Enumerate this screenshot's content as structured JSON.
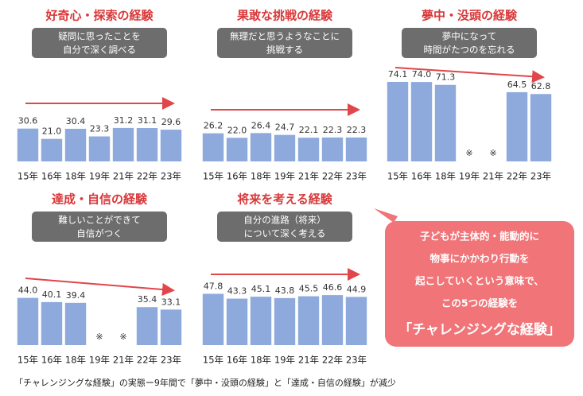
{
  "chart_data": [
    {
      "type": "bar",
      "title": "好奇心・探索の経験",
      "subtitle": [
        "疑問に思ったことを",
        "自分で深く調べる"
      ],
      "categories": [
        "15年",
        "16年",
        "18年",
        "19年",
        "21年",
        "22年",
        "23年"
      ],
      "values": [
        30.6,
        21.0,
        30.4,
        23.3,
        31.2,
        31.1,
        29.6
      ],
      "value_labels": [
        "30.6",
        "21.0",
        "30.4",
        "23.3",
        "31.2",
        "31.1",
        "29.6"
      ],
      "color": "#8eaadd"
    },
    {
      "type": "bar",
      "title": "果敢な挑戦の経験",
      "subtitle": [
        "無理だと思うようなことに",
        "挑戦する"
      ],
      "categories": [
        "15年",
        "16年",
        "18年",
        "19年",
        "21年",
        "22年",
        "23年"
      ],
      "values": [
        26.2,
        22.0,
        26.4,
        24.7,
        22.1,
        22.3,
        22.3
      ],
      "value_labels": [
        "26.2",
        "22.0",
        "26.4",
        "24.7",
        "22.1",
        "22.3",
        "22.3"
      ],
      "color": "#8eaadd"
    },
    {
      "type": "bar",
      "title": "夢中・没頭の経験",
      "subtitle": [
        "夢中になって",
        "時間がたつのを忘れる"
      ],
      "categories": [
        "15年",
        "16年",
        "18年",
        "19年",
        "21年",
        "22年",
        "23年"
      ],
      "values": [
        74.1,
        74.0,
        71.3,
        null,
        null,
        64.5,
        62.8
      ],
      "value_labels": [
        "74.1",
        "74.0",
        "71.3",
        "※",
        "※",
        "64.5",
        "62.8"
      ],
      "color": "#8eaadd"
    },
    {
      "type": "bar",
      "title": "達成・自信の経験",
      "subtitle": [
        "難しいことができて",
        "自信がつく"
      ],
      "categories": [
        "15年",
        "16年",
        "18年",
        "19年",
        "21年",
        "22年",
        "23年"
      ],
      "values": [
        44.0,
        40.1,
        39.4,
        null,
        null,
        35.4,
        33.1
      ],
      "value_labels": [
        "44.0",
        "40.1",
        "39.4",
        "※",
        "※",
        "35.4",
        "33.1"
      ],
      "color": "#8eaadd"
    },
    {
      "type": "bar",
      "title": "将来を考える経験",
      "subtitle": [
        "自分の進路（将来）",
        "について深く考える"
      ],
      "categories": [
        "15年",
        "16年",
        "18年",
        "19年",
        "21年",
        "22年",
        "23年"
      ],
      "values": [
        47.8,
        43.3,
        45.1,
        43.8,
        45.5,
        46.6,
        44.9
      ],
      "value_labels": [
        "47.8",
        "43.3",
        "45.1",
        "43.8",
        "45.5",
        "46.6",
        "44.9"
      ],
      "color": "#8eaadd"
    }
  ],
  "callout": [
    "子どもが主体的・能動的に",
    "物事にかかわり行動を",
    "起こしていくという意味で、",
    "この5つの経験を",
    "「チャレンジングな経験」"
  ],
  "footnote": "「チャレンジングな経験」の実態ー9年間で「夢中・没頭の経験」と「達成・自信の経験」が減少"
}
